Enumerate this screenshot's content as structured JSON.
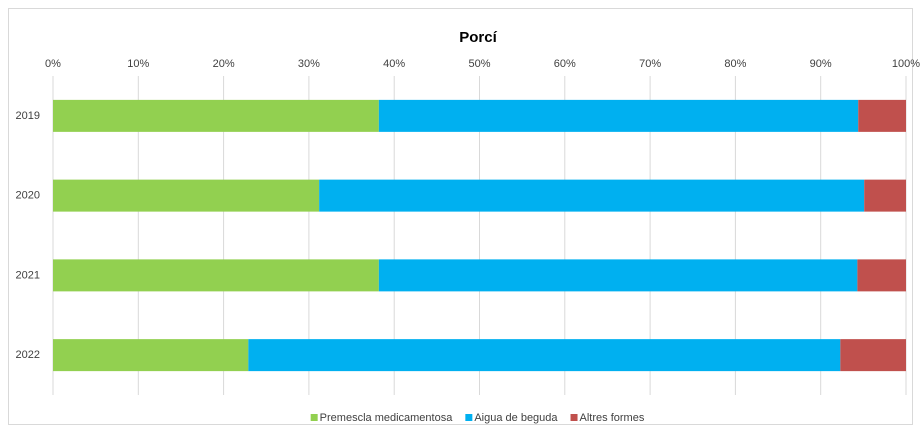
{
  "chart_data": {
    "type": "stacked-bar-horizontal",
    "title": "Porcí",
    "categories": [
      "2019",
      "2020",
      "2021",
      "2022"
    ],
    "series": [
      {
        "name": "Premescla medicamentosa",
        "color": "#92d050",
        "values": [
          38.2,
          31.2,
          38.2,
          22.9
        ]
      },
      {
        "name": "Aigua de beguda",
        "color": "#00b0f0",
        "values": [
          56.2,
          63.9,
          56.1,
          69.4
        ]
      },
      {
        "name": "Altres formes",
        "color": "#c0504d",
        "values": [
          5.6,
          4.9,
          5.7,
          7.7
        ]
      }
    ],
    "xlim": [
      0,
      100
    ],
    "xticks": [
      {
        "value": 0,
        "label": "0%"
      },
      {
        "value": 10,
        "label": "10%"
      },
      {
        "value": 20,
        "label": "20%"
      },
      {
        "value": 30,
        "label": "30%"
      },
      {
        "value": 40,
        "label": "40%"
      },
      {
        "value": 50,
        "label": "50%"
      },
      {
        "value": 60,
        "label": "60%"
      },
      {
        "value": 70,
        "label": "70%"
      },
      {
        "value": 80,
        "label": "80%"
      },
      {
        "value": 90,
        "label": "90%"
      },
      {
        "value": 100,
        "label": "100%"
      }
    ],
    "grid": true,
    "legend": "bottom"
  }
}
